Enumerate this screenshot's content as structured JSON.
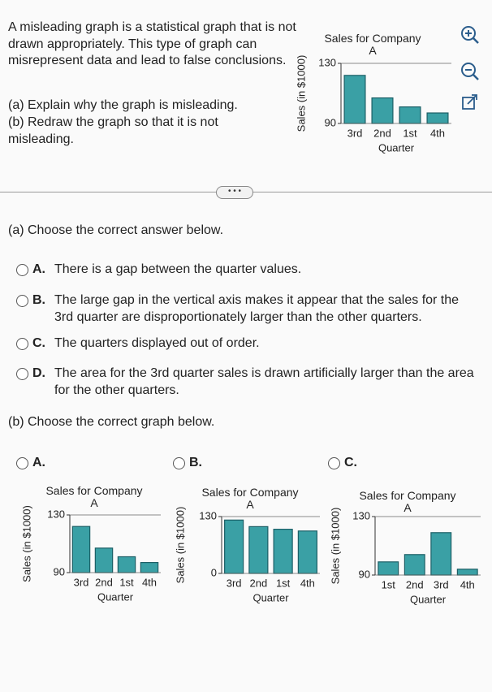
{
  "problem": {
    "text": "A misleading graph is a statistical graph that is not drawn appropriately. This type of graph can misrepresent data and lead to false conclusions.",
    "parts": [
      "(a) Explain why the graph is misleading.",
      "(b) Redraw the graph so that it is not misleading."
    ]
  },
  "problem_chart": {
    "type": "bar",
    "title": "Sales for Company A",
    "ylabel": "Sales (in $1000)",
    "xlabel": "Quarter",
    "categories": [
      "3rd",
      "2nd",
      "1st",
      "4th"
    ],
    "values": [
      122,
      107,
      101,
      97
    ],
    "ylim": [
      90,
      130
    ],
    "yticks": [
      90,
      130
    ],
    "color": "#3aa0a5",
    "grid": true
  },
  "part_a": {
    "prompt": "(a) Choose the correct answer below.",
    "options": [
      {
        "letter": "A.",
        "text": "There is a gap between the quarter values."
      },
      {
        "letter": "B.",
        "text": "The large gap in the vertical axis makes it appear that the sales for the 3rd quarter are disproportionately larger than the other quarters."
      },
      {
        "letter": "C.",
        "text": "The quarters displayed out of order."
      },
      {
        "letter": "D.",
        "text": "The area for the 3rd quarter sales is drawn artificially larger than the area for the other quarters."
      }
    ]
  },
  "part_b": {
    "prompt": "(b) Choose the correct graph below.",
    "options": [
      {
        "letter": "A.",
        "chart": {
          "type": "bar",
          "title": "Sales for Company A",
          "ylabel": "Sales (in $1000)",
          "xlabel": "Quarter",
          "categories": [
            "3rd",
            "2nd",
            "1st",
            "4th"
          ],
          "values": [
            122,
            107,
            101,
            97
          ],
          "ylim": [
            90,
            130
          ],
          "yticks": [
            90,
            130
          ],
          "color": "#3aa0a5",
          "grid": true
        }
      },
      {
        "letter": "B.",
        "chart": {
          "type": "bar",
          "title": "Sales for Company A",
          "ylabel": "Sales (in $1000)",
          "xlabel": "Quarter",
          "categories": [
            "3rd",
            "2nd",
            "1st",
            "4th"
          ],
          "values": [
            122,
            107,
            101,
            97
          ],
          "ylim": [
            0,
            130
          ],
          "yticks": [
            0,
            130
          ],
          "color": "#3aa0a5",
          "grid": true
        }
      },
      {
        "letter": "C.",
        "chart": {
          "type": "bar",
          "title": "Sales for Company A",
          "ylabel": "Sales (in $1000)",
          "xlabel": "Quarter",
          "categories": [
            "1st",
            "2nd",
            "3rd",
            "4th"
          ],
          "values": [
            99,
            104,
            119,
            94
          ],
          "ylim": [
            90,
            130
          ],
          "yticks": [
            90,
            130
          ],
          "color": "#3aa0a5",
          "grid": true
        }
      }
    ]
  }
}
